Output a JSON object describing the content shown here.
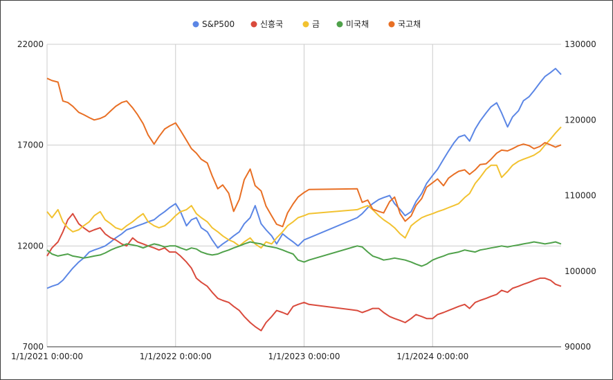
{
  "chart_data": {
    "type": "line",
    "legend_position": "top",
    "grid": true,
    "x_ticks": [
      "1/1/2021 0:00:00",
      "1/1/2022 0:00:00",
      "1/1/2023 0:00:00",
      "1/1/2024 0:00:00"
    ],
    "x_range": [
      "2021-01-01",
      "2024-12-31"
    ],
    "y_left": {
      "min": 7000,
      "max": 22000,
      "ticks": [
        "7000",
        "12000",
        "17000",
        "22000"
      ]
    },
    "y_right": {
      "min": 90000,
      "max": 130000,
      "ticks": [
        "90000",
        "100000",
        "110000",
        "120000",
        "130000"
      ]
    },
    "series": [
      {
        "name": "S&P500",
        "color": "#5b86e5",
        "axis": "left",
        "dates": [
          "2021-01-01",
          "2021-01-15",
          "2021-02-01",
          "2021-02-15",
          "2021-03-01",
          "2021-03-15",
          "2021-04-01",
          "2021-04-15",
          "2021-05-01",
          "2021-05-15",
          "2021-06-01",
          "2021-06-15",
          "2021-07-01",
          "2021-07-15",
          "2021-08-01",
          "2021-08-15",
          "2021-09-01",
          "2021-09-15",
          "2021-10-01",
          "2021-10-15",
          "2021-11-01",
          "2021-11-15",
          "2021-12-01",
          "2021-12-15",
          "2022-01-01",
          "2022-01-15",
          "2022-02-01",
          "2022-02-15",
          "2022-03-01",
          "2022-03-15",
          "2022-04-01",
          "2022-04-15",
          "2022-05-01",
          "2022-05-15",
          "2022-06-01",
          "2022-06-15",
          "2022-07-01",
          "2022-07-15",
          "2022-08-01",
          "2022-08-15",
          "2022-09-01",
          "2022-09-15",
          "2022-10-01",
          "2022-10-15",
          "2022-11-01",
          "2022-11-15",
          "2022-12-01",
          "2022-12-15",
          "2023-01-01",
          "2023-01-15",
          "2023-06-01",
          "2023-06-15",
          "2023-07-01",
          "2023-07-15",
          "2023-08-01",
          "2023-08-15",
          "2023-09-01",
          "2023-09-15",
          "2023-10-01",
          "2023-10-15",
          "2023-11-01",
          "2023-11-15",
          "2023-12-01",
          "2023-12-15",
          "2024-01-01",
          "2024-01-15",
          "2024-02-01",
          "2024-02-15",
          "2024-03-01",
          "2024-03-15",
          "2024-04-01",
          "2024-04-15",
          "2024-05-01",
          "2024-05-15",
          "2024-06-01",
          "2024-06-15",
          "2024-07-01",
          "2024-07-15",
          "2024-08-01",
          "2024-08-15",
          "2024-09-01",
          "2024-09-15",
          "2024-10-01",
          "2024-10-15",
          "2024-11-01",
          "2024-11-15",
          "2024-12-01",
          "2024-12-15",
          "2024-12-31"
        ],
        "values": [
          9900,
          10000,
          10100,
          10300,
          10600,
          10900,
          11200,
          11400,
          11700,
          11800,
          11900,
          12000,
          12200,
          12400,
          12600,
          12800,
          12900,
          13000,
          13100,
          13200,
          13300,
          13500,
          13700,
          13900,
          14100,
          13700,
          13000,
          13300,
          13400,
          12900,
          12700,
          12300,
          11900,
          12100,
          12300,
          12500,
          12700,
          13100,
          13400,
          14000,
          13100,
          12800,
          12500,
          12100,
          12600,
          12400,
          12200,
          12000,
          12300,
          12400,
          13400,
          13600,
          13900,
          14100,
          14300,
          14400,
          14500,
          14100,
          13800,
          13500,
          13700,
          14200,
          14600,
          15100,
          15500,
          15800,
          16300,
          16700,
          17100,
          17400,
          17500,
          17200,
          17800,
          18200,
          18600,
          18900,
          19100,
          18600,
          17900,
          18400,
          18700,
          19200,
          19400,
          19700,
          20100,
          20400,
          20600,
          20800,
          20500
        ]
      },
      {
        "name": "신흥국",
        "color": "#d94a3c",
        "axis": "left",
        "dates": [
          "2021-01-01",
          "2021-01-15",
          "2021-02-01",
          "2021-02-15",
          "2021-03-01",
          "2021-03-15",
          "2021-04-01",
          "2021-04-15",
          "2021-05-01",
          "2021-05-15",
          "2021-06-01",
          "2021-06-15",
          "2021-07-01",
          "2021-07-15",
          "2021-08-01",
          "2021-08-15",
          "2021-09-01",
          "2021-09-15",
          "2021-10-01",
          "2021-10-15",
          "2021-11-01",
          "2021-11-15",
          "2021-12-01",
          "2021-12-15",
          "2022-01-01",
          "2022-01-15",
          "2022-02-01",
          "2022-02-15",
          "2022-03-01",
          "2022-03-15",
          "2022-04-01",
          "2022-04-15",
          "2022-05-01",
          "2022-05-15",
          "2022-06-01",
          "2022-06-15",
          "2022-07-01",
          "2022-07-15",
          "2022-08-01",
          "2022-08-15",
          "2022-09-01",
          "2022-09-15",
          "2022-10-01",
          "2022-10-15",
          "2022-11-01",
          "2022-11-15",
          "2022-12-01",
          "2022-12-15",
          "2023-01-01",
          "2023-01-15",
          "2023-06-01",
          "2023-06-15",
          "2023-07-01",
          "2023-07-15",
          "2023-08-01",
          "2023-08-15",
          "2023-09-01",
          "2023-09-15",
          "2023-10-01",
          "2023-10-15",
          "2023-11-01",
          "2023-11-15",
          "2023-12-01",
          "2023-12-15",
          "2024-01-01",
          "2024-01-15",
          "2024-02-01",
          "2024-02-15",
          "2024-03-01",
          "2024-03-15",
          "2024-04-01",
          "2024-04-15",
          "2024-05-01",
          "2024-05-15",
          "2024-06-01",
          "2024-06-15",
          "2024-07-01",
          "2024-07-15",
          "2024-08-01",
          "2024-08-15",
          "2024-09-01",
          "2024-09-15",
          "2024-10-01",
          "2024-10-15",
          "2024-11-01",
          "2024-11-15",
          "2024-12-01",
          "2024-12-15",
          "2024-12-31"
        ],
        "values": [
          11500,
          11900,
          12200,
          12700,
          13300,
          13600,
          13100,
          12900,
          12700,
          12800,
          12900,
          12600,
          12400,
          12300,
          12100,
          12000,
          12400,
          12200,
          12100,
          12000,
          11900,
          11800,
          11900,
          11700,
          11700,
          11500,
          11200,
          10900,
          10400,
          10200,
          10000,
          9700,
          9400,
          9300,
          9200,
          9000,
          8800,
          8500,
          8200,
          8000,
          7800,
          8200,
          8500,
          8800,
          8700,
          8600,
          9000,
          9100,
          9200,
          9100,
          8800,
          8700,
          8800,
          8900,
          8900,
          8700,
          8500,
          8400,
          8300,
          8200,
          8400,
          8600,
          8500,
          8400,
          8400,
          8600,
          8700,
          8800,
          8900,
          9000,
          9100,
          8900,
          9200,
          9300,
          9400,
          9500,
          9600,
          9800,
          9700,
          9900,
          10000,
          10100,
          10200,
          10300,
          10400,
          10400,
          10300,
          10100,
          10000
        ]
      },
      {
        "name": "금",
        "color": "#f2c230",
        "axis": "left",
        "dates": [
          "2021-01-01",
          "2021-01-15",
          "2021-02-01",
          "2021-02-15",
          "2021-03-01",
          "2021-03-15",
          "2021-04-01",
          "2021-04-15",
          "2021-05-01",
          "2021-05-15",
          "2021-06-01",
          "2021-06-15",
          "2021-07-01",
          "2021-07-15",
          "2021-08-01",
          "2021-08-15",
          "2021-09-01",
          "2021-09-15",
          "2021-10-01",
          "2021-10-15",
          "2021-11-01",
          "2021-11-15",
          "2021-12-01",
          "2021-12-15",
          "2022-01-01",
          "2022-01-15",
          "2022-02-01",
          "2022-02-15",
          "2022-03-01",
          "2022-03-15",
          "2022-04-01",
          "2022-04-15",
          "2022-05-01",
          "2022-05-15",
          "2022-06-01",
          "2022-06-15",
          "2022-07-01",
          "2022-07-15",
          "2022-08-01",
          "2022-08-15",
          "2022-09-01",
          "2022-09-15",
          "2022-10-01",
          "2022-10-15",
          "2022-11-01",
          "2022-11-15",
          "2022-12-01",
          "2022-12-15",
          "2023-01-01",
          "2023-01-15",
          "2023-06-01",
          "2023-06-15",
          "2023-07-01",
          "2023-07-15",
          "2023-08-01",
          "2023-08-15",
          "2023-09-01",
          "2023-09-15",
          "2023-10-01",
          "2023-10-15",
          "2023-11-01",
          "2023-11-15",
          "2023-12-01",
          "2023-12-15",
          "2024-01-01",
          "2024-01-15",
          "2024-02-01",
          "2024-02-15",
          "2024-03-01",
          "2024-03-15",
          "2024-04-01",
          "2024-04-15",
          "2024-05-01",
          "2024-05-15",
          "2024-06-01",
          "2024-06-15",
          "2024-07-01",
          "2024-07-15",
          "2024-08-01",
          "2024-08-15",
          "2024-09-01",
          "2024-09-15",
          "2024-10-01",
          "2024-10-15",
          "2024-11-01",
          "2024-11-15",
          "2024-12-01",
          "2024-12-15",
          "2024-12-31"
        ],
        "values": [
          13700,
          13400,
          13800,
          13200,
          12900,
          12700,
          12800,
          13000,
          13200,
          13500,
          13700,
          13300,
          13100,
          12900,
          12800,
          13000,
          13200,
          13400,
          13600,
          13200,
          13000,
          12900,
          13000,
          13200,
          13500,
          13700,
          13800,
          14000,
          13600,
          13400,
          13200,
          12900,
          12700,
          12500,
          12300,
          12200,
          12000,
          12200,
          12400,
          12100,
          11900,
          12200,
          12100,
          12400,
          12700,
          13000,
          13200,
          13400,
          13500,
          13600,
          13800,
          13900,
          14000,
          13800,
          13500,
          13300,
          13100,
          12900,
          12600,
          12400,
          13000,
          13200,
          13400,
          13500,
          13600,
          13700,
          13800,
          13900,
          14000,
          14100,
          14400,
          14600,
          15100,
          15400,
          15800,
          16000,
          16000,
          15400,
          15700,
          16000,
          16200,
          16300,
          16400,
          16500,
          16700,
          17000,
          17300,
          17600,
          17900
        ]
      },
      {
        "name": "미국채",
        "color": "#4fa14a",
        "axis": "left",
        "dates": [
          "2021-01-01",
          "2021-01-15",
          "2021-02-01",
          "2021-02-15",
          "2021-03-01",
          "2021-03-15",
          "2021-04-01",
          "2021-04-15",
          "2021-05-01",
          "2021-05-15",
          "2021-06-01",
          "2021-06-15",
          "2021-07-01",
          "2021-07-15",
          "2021-08-01",
          "2021-08-15",
          "2021-09-01",
          "2021-09-15",
          "2021-10-01",
          "2021-10-15",
          "2021-11-01",
          "2021-11-15",
          "2021-12-01",
          "2021-12-15",
          "2022-01-01",
          "2022-01-15",
          "2022-02-01",
          "2022-02-15",
          "2022-03-01",
          "2022-03-15",
          "2022-04-01",
          "2022-04-15",
          "2022-05-01",
          "2022-05-15",
          "2022-06-01",
          "2022-06-15",
          "2022-07-01",
          "2022-07-15",
          "2022-08-01",
          "2022-08-15",
          "2022-09-01",
          "2022-09-15",
          "2022-10-01",
          "2022-10-15",
          "2022-11-01",
          "2022-11-15",
          "2022-12-01",
          "2022-12-15",
          "2023-01-01",
          "2023-01-15",
          "2023-06-01",
          "2023-06-15",
          "2023-07-01",
          "2023-07-15",
          "2023-08-01",
          "2023-08-15",
          "2023-09-01",
          "2023-09-15",
          "2023-10-01",
          "2023-10-15",
          "2023-11-01",
          "2023-11-15",
          "2023-12-01",
          "2023-12-15",
          "2024-01-01",
          "2024-01-15",
          "2024-02-01",
          "2024-02-15",
          "2024-03-01",
          "2024-03-15",
          "2024-04-01",
          "2024-04-15",
          "2024-05-01",
          "2024-05-15",
          "2024-06-01",
          "2024-06-15",
          "2024-07-01",
          "2024-07-15",
          "2024-08-01",
          "2024-08-15",
          "2024-09-01",
          "2024-09-15",
          "2024-10-01",
          "2024-10-15",
          "2024-11-01",
          "2024-11-15",
          "2024-12-01",
          "2024-12-15",
          "2024-12-31"
        ],
        "values": [
          11800,
          11600,
          11500,
          11550,
          11600,
          11500,
          11450,
          11400,
          11450,
          11500,
          11550,
          11650,
          11800,
          11900,
          12000,
          12100,
          12050,
          12000,
          11900,
          12000,
          12100,
          12050,
          11950,
          12000,
          12000,
          11900,
          11800,
          11900,
          11850,
          11700,
          11600,
          11550,
          11600,
          11700,
          11800,
          11900,
          12000,
          12100,
          12200,
          12150,
          12100,
          12000,
          11950,
          11900,
          11800,
          11700,
          11600,
          11300,
          11200,
          11300,
          12000,
          11950,
          11700,
          11500,
          11400,
          11300,
          11350,
          11400,
          11350,
          11300,
          11200,
          11100,
          11000,
          11100,
          11300,
          11400,
          11500,
          11600,
          11650,
          11700,
          11800,
          11750,
          11700,
          11800,
          11850,
          11900,
          11950,
          12000,
          11950,
          12000,
          12050,
          12100,
          12150,
          12200,
          12150,
          12100,
          12150,
          12200,
          12100
        ]
      },
      {
        "name": "국고채",
        "color": "#e86f24",
        "axis": "right",
        "dates": [
          "2021-01-01",
          "2021-01-15",
          "2021-02-01",
          "2021-02-15",
          "2021-03-01",
          "2021-03-15",
          "2021-04-01",
          "2021-04-15",
          "2021-05-01",
          "2021-05-15",
          "2021-06-01",
          "2021-06-15",
          "2021-07-01",
          "2021-07-15",
          "2021-08-01",
          "2021-08-15",
          "2021-09-01",
          "2021-09-15",
          "2021-10-01",
          "2021-10-15",
          "2021-11-01",
          "2021-11-15",
          "2021-12-01",
          "2021-12-15",
          "2022-01-01",
          "2022-01-15",
          "2022-02-01",
          "2022-02-15",
          "2022-03-01",
          "2022-03-15",
          "2022-04-01",
          "2022-04-15",
          "2022-05-01",
          "2022-05-15",
          "2022-06-01",
          "2022-06-15",
          "2022-07-01",
          "2022-07-15",
          "2022-08-01",
          "2022-08-15",
          "2022-09-01",
          "2022-09-15",
          "2022-10-01",
          "2022-10-15",
          "2022-11-01",
          "2022-11-15",
          "2022-12-01",
          "2022-12-15",
          "2023-01-01",
          "2023-01-15",
          "2023-06-01",
          "2023-06-15",
          "2023-07-01",
          "2023-07-15",
          "2023-08-01",
          "2023-08-15",
          "2023-09-01",
          "2023-09-15",
          "2023-10-01",
          "2023-10-15",
          "2023-11-01",
          "2023-11-15",
          "2023-12-01",
          "2023-12-15",
          "2024-01-01",
          "2024-01-15",
          "2024-02-01",
          "2024-02-15",
          "2024-03-01",
          "2024-03-15",
          "2024-04-01",
          "2024-04-15",
          "2024-05-01",
          "2024-05-15",
          "2024-06-01",
          "2024-06-15",
          "2024-07-01",
          "2024-07-15",
          "2024-08-01",
          "2024-08-15",
          "2024-09-01",
          "2024-09-15",
          "2024-10-01",
          "2024-10-15",
          "2024-11-01",
          "2024-11-15",
          "2024-12-01",
          "2024-12-15",
          "2024-12-31"
        ],
        "values": [
          125500,
          125200,
          125000,
          122500,
          122300,
          121800,
          121000,
          120700,
          120300,
          120000,
          120200,
          120500,
          121200,
          121800,
          122300,
          122500,
          121600,
          120700,
          119500,
          118000,
          116800,
          117800,
          118800,
          119200,
          119600,
          118600,
          117300,
          116200,
          115600,
          114800,
          114300,
          112600,
          110900,
          111400,
          110300,
          107900,
          109500,
          112100,
          113500,
          111300,
          110600,
          108600,
          107300,
          106200,
          105900,
          107700,
          108900,
          109800,
          110400,
          110800,
          110900,
          109100,
          109400,
          108200,
          107900,
          107700,
          109200,
          109800,
          107600,
          106600,
          107300,
          108700,
          109600,
          111100,
          111700,
          112200,
          111300,
          112300,
          112800,
          113200,
          113400,
          112800,
          113400,
          114100,
          114200,
          114800,
          115600,
          116000,
          115900,
          116200,
          116600,
          116800,
          116600,
          116200,
          116500,
          117000,
          116700,
          116400,
          116700
        ]
      }
    ]
  }
}
